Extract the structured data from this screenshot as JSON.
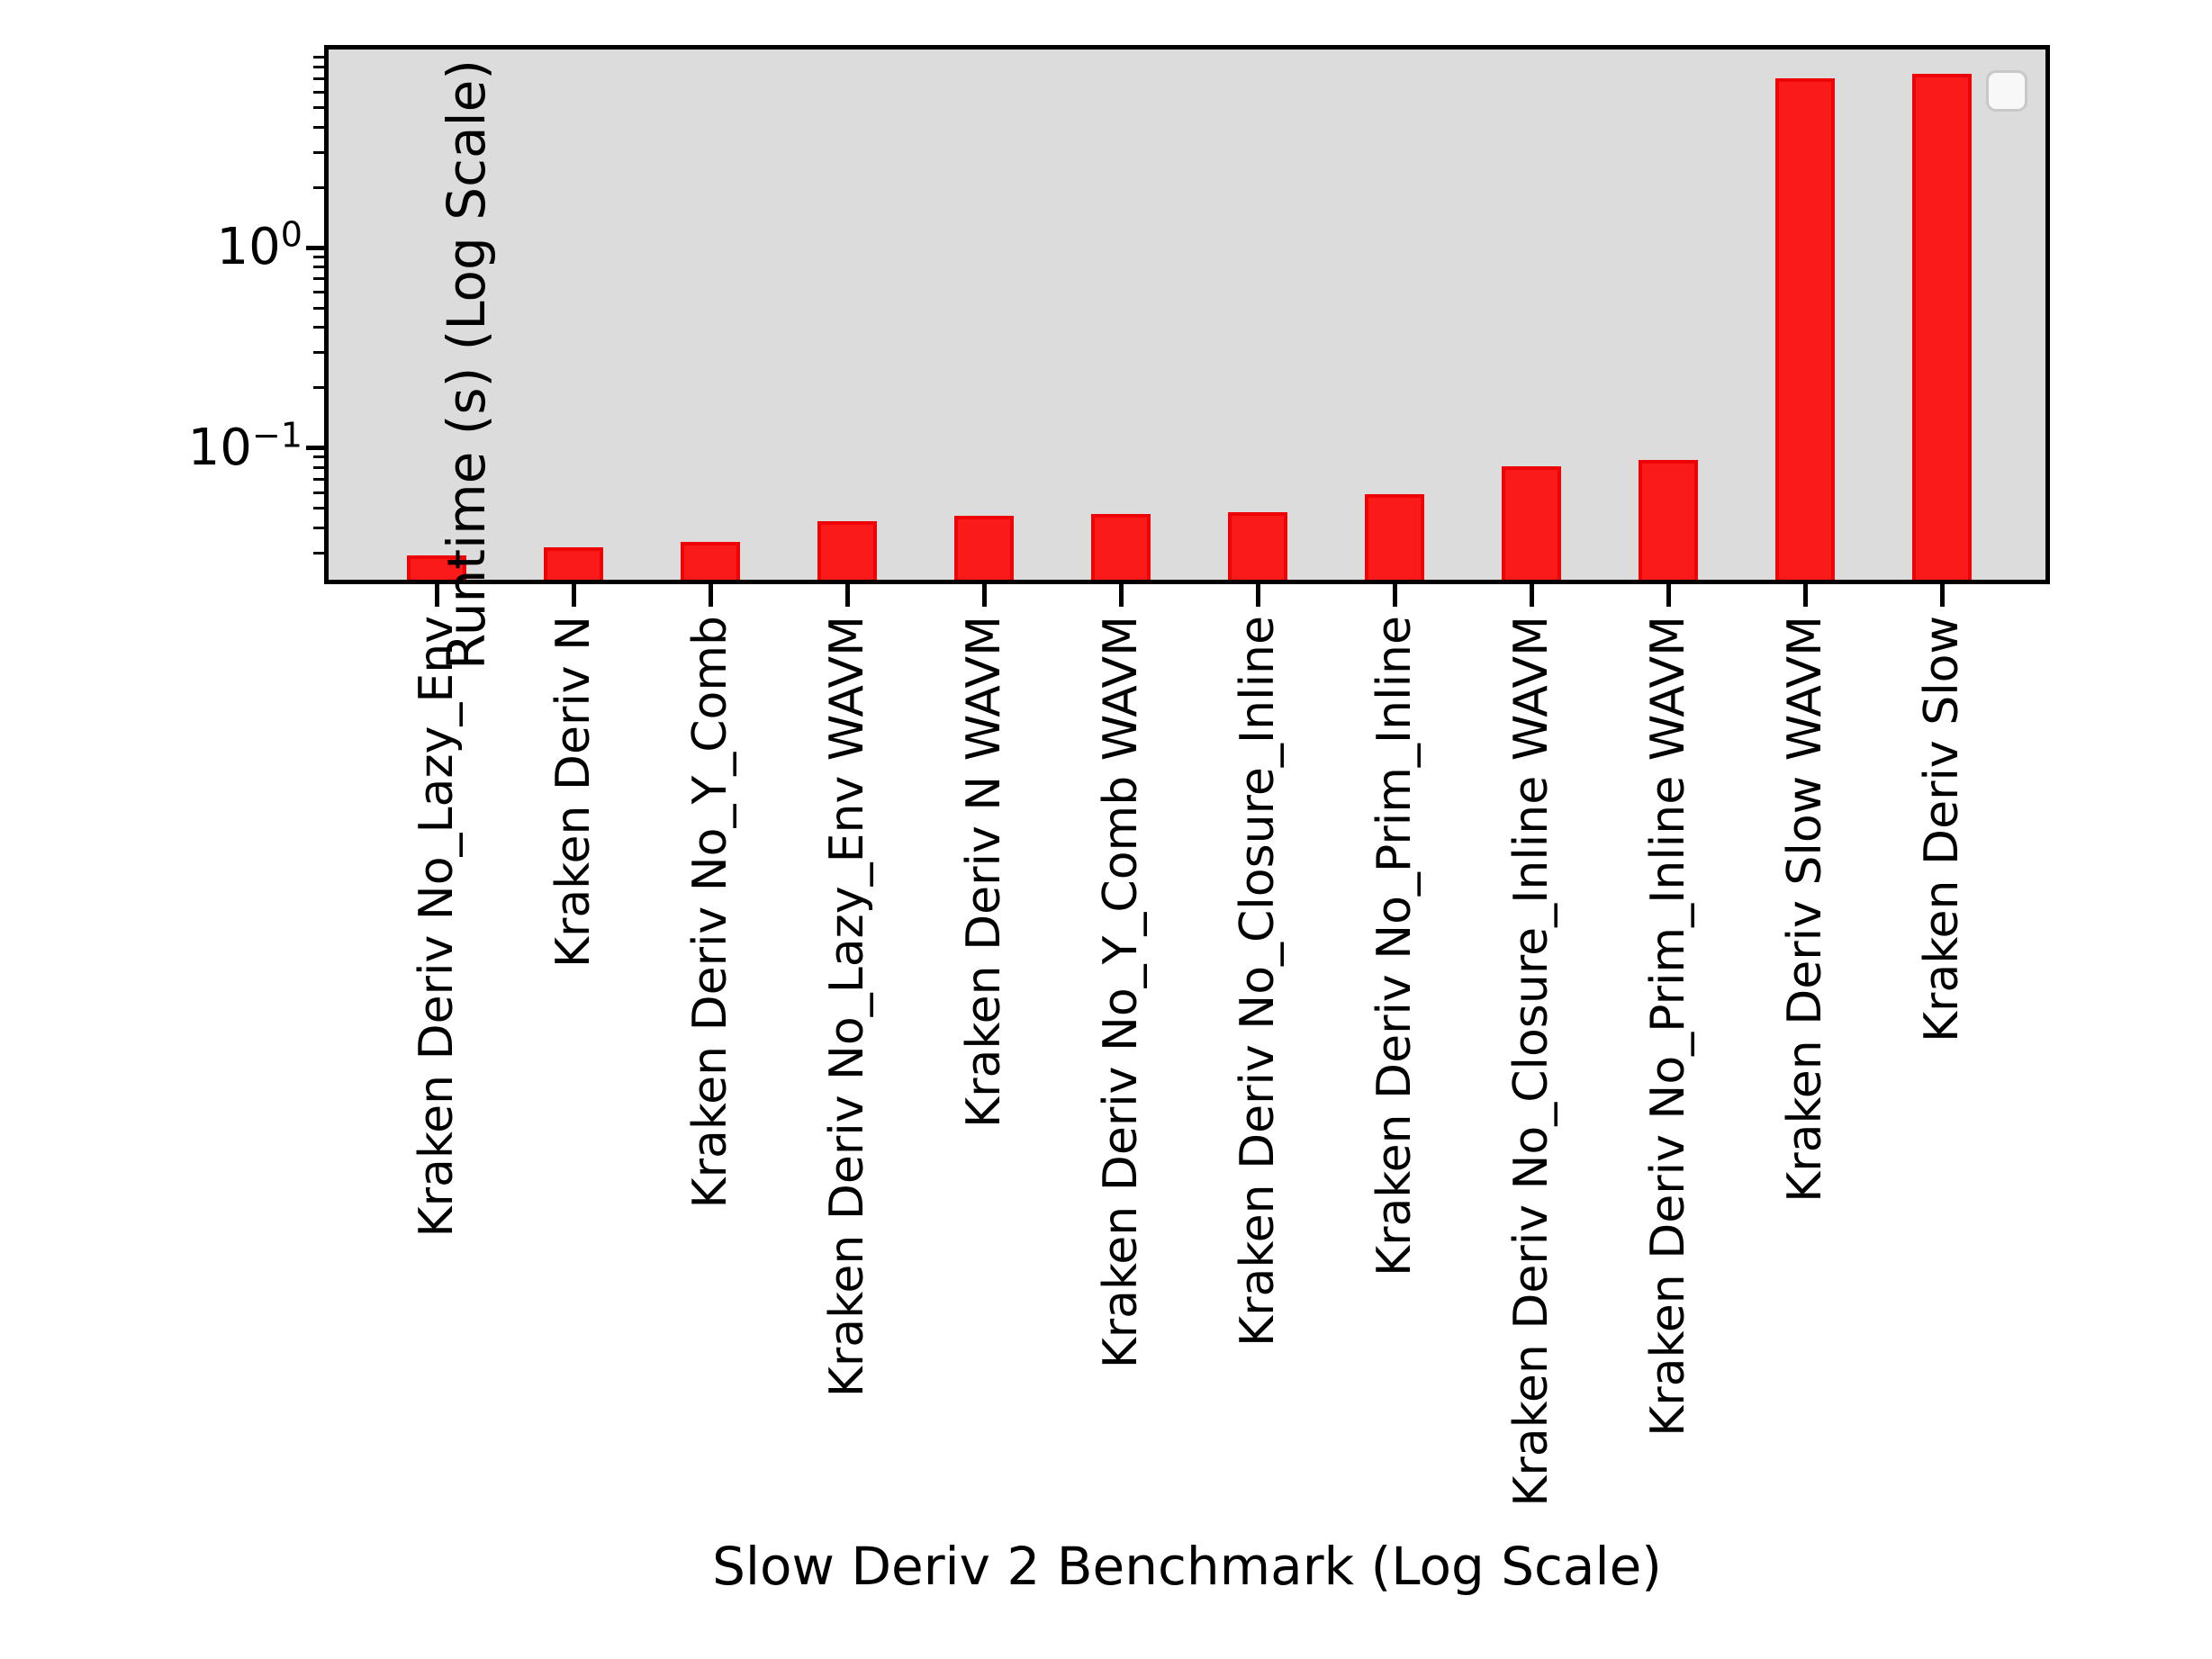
{
  "chart_data": {
    "type": "bar",
    "title": "",
    "xlabel": "Slow Deriv 2 Benchmark (Log Scale)",
    "ylabel": "Runtime (s) (Log Scale)",
    "yscale": "log",
    "ylim": [
      0.022,
      9.8
    ],
    "grid": false,
    "plot_bg_color": "#dcdcdc",
    "bar_color": "#fb1a1a",
    "bar_edge_color": "#ee0404",
    "categories": [
      "Kraken Deriv No_Lazy_Env",
      "Kraken Deriv N",
      "Kraken Deriv No_Y_Comb",
      "Kraken Deriv No_Lazy_Env WAVM",
      "Kraken Deriv N WAVM",
      "Kraken Deriv No_Y_Comb WAVM",
      "Kraken Deriv No_Closure_Inline",
      "Kraken Deriv No_Prim_Inline",
      "Kraken Deriv No_Closure_Inline WAVM",
      "Kraken Deriv No_Prim_Inline WAVM",
      "Kraken Deriv Slow WAVM",
      "Kraken Deriv Slow"
    ],
    "values": [
      0.029,
      0.032,
      0.034,
      0.043,
      0.046,
      0.047,
      0.048,
      0.059,
      0.081,
      0.087,
      7.0,
      7.4
    ],
    "y_major_ticks": [
      {
        "value": 1,
        "base": "10",
        "exp": "0"
      },
      {
        "value": 0.1,
        "base": "10",
        "exp": "−1"
      }
    ],
    "y_minor_ticks": [
      0.03,
      0.04,
      0.05,
      0.06,
      0.07,
      0.08,
      0.09,
      0.2,
      0.3,
      0.4,
      0.5,
      0.6,
      0.7,
      0.8,
      0.9,
      2,
      3,
      4,
      5,
      6,
      7,
      8,
      9
    ],
    "legend": {
      "present": true,
      "location": "upper right",
      "entries": []
    }
  }
}
